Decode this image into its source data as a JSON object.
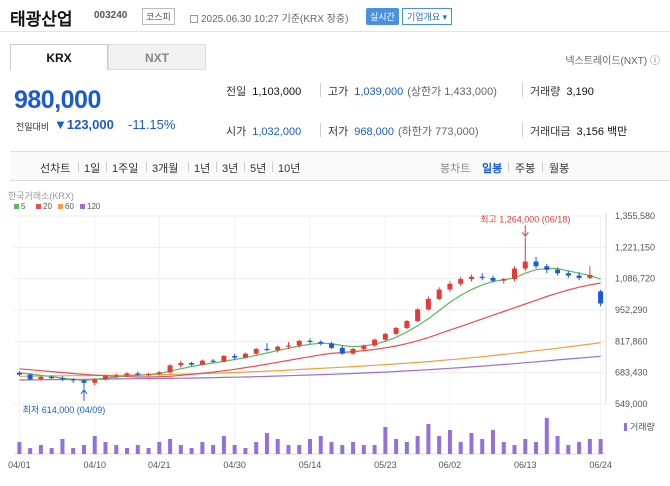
{
  "header": {
    "title": "태광산업",
    "code": "003240",
    "market": "코스피",
    "time": "2025.06.30 10:27 기준(KRX 장중)",
    "realtime": "실시간",
    "company_info": "기업개요 ▾"
  },
  "tabs": [
    "KRX",
    "NXT"
  ],
  "nxt_link": "넥스트레이드(NXT) ⓘ",
  "quote": {
    "price": "980,000",
    "change_label": "전일대비",
    "change": "▼123,000",
    "change_pct": "-11.15%"
  },
  "stats": {
    "prev_label": "전일",
    "prev": "1,103,000",
    "high_label": "고가",
    "high": "1,039,000",
    "upper_limit": "(상한가 1,433,000)",
    "volume_label": "거래량",
    "volume": "3,190",
    "open_label": "시가",
    "open": "1,032,000",
    "low_label": "저가",
    "low": "968,000",
    "lower_limit": "(하한가 773,000)",
    "amount_label": "거래대금",
    "amount": "3,156 백만"
  },
  "toolbar": {
    "line_chart": "선차트",
    "periods": [
      "1일",
      "1주일",
      "3개월",
      "1년",
      "3년",
      "5년",
      "10년"
    ],
    "candle_chart": "봉차트",
    "candle_periods": [
      "일봉",
      "주봉",
      "월봉"
    ]
  },
  "chart_data": {
    "type": "candlestick",
    "source": "한국거래소(KRX)",
    "ma_legend": [
      "5",
      "20",
      "60",
      "120"
    ],
    "y_ticks": [
      "1,355,580",
      "1,221,150",
      "1,086,720",
      "952,290",
      "817,860",
      "683,430",
      "549,000"
    ],
    "x_ticks": [
      "04/01",
      "04/10",
      "04/21",
      "04/30",
      "05/14",
      "05/23",
      "06/02",
      "06/13",
      "06/24"
    ],
    "ylim": [
      549000,
      1355580
    ],
    "high_annotation": "최고 1,264,000 (06/18)",
    "low_annotation": "최저 614,000 (04/09)",
    "volume_label": "거래량",
    "colors": {
      "up": "#e33b3b",
      "down": "#1a5ad6",
      "ma5": "#5cb85c",
      "ma20": "#e55050",
      "ma60": "#f0a040",
      "ma120": "#9b6fd1",
      "volume": "#9370db"
    },
    "candles": [
      [
        683000,
        690000,
        670000,
        675000
      ],
      [
        675000,
        680000,
        650000,
        655000
      ],
      [
        655000,
        670000,
        650000,
        665000
      ],
      [
        665000,
        672000,
        655000,
        660000
      ],
      [
        660000,
        668000,
        648000,
        655000
      ],
      [
        655000,
        660000,
        640000,
        650000
      ],
      [
        650000,
        655000,
        614000,
        640000
      ],
      [
        640000,
        660000,
        630000,
        655000
      ],
      [
        655000,
        675000,
        650000,
        668000
      ],
      [
        668000,
        680000,
        660000,
        672000
      ],
      [
        672000,
        685000,
        665000,
        680000
      ],
      [
        680000,
        688000,
        670000,
        675000
      ],
      [
        675000,
        682000,
        668000,
        678000
      ],
      [
        678000,
        690000,
        672000,
        685000
      ],
      [
        685000,
        720000,
        680000,
        715000
      ],
      [
        715000,
        735000,
        705000,
        725000
      ],
      [
        725000,
        730000,
        712000,
        718000
      ],
      [
        718000,
        740000,
        715000,
        735000
      ],
      [
        735000,
        742000,
        725000,
        730000
      ],
      [
        730000,
        760000,
        728000,
        755000
      ],
      [
        755000,
        765000,
        740000,
        748000
      ],
      [
        748000,
        770000,
        745000,
        765000
      ],
      [
        765000,
        790000,
        760000,
        785000
      ],
      [
        785000,
        810000,
        775000,
        780000
      ],
      [
        780000,
        800000,
        770000,
        795000
      ],
      [
        795000,
        815000,
        785000,
        800000
      ],
      [
        800000,
        825000,
        790000,
        820000
      ],
      [
        820000,
        830000,
        805000,
        815000
      ],
      [
        815000,
        822000,
        800000,
        808000
      ],
      [
        808000,
        815000,
        785000,
        790000
      ],
      [
        790000,
        800000,
        760000,
        765000
      ],
      [
        765000,
        790000,
        760000,
        785000
      ],
      [
        785000,
        805000,
        778000,
        800000
      ],
      [
        800000,
        830000,
        795000,
        825000
      ],
      [
        825000,
        855000,
        815000,
        850000
      ],
      [
        850000,
        880000,
        845000,
        875000
      ],
      [
        875000,
        910000,
        870000,
        905000
      ],
      [
        905000,
        960000,
        900000,
        955000
      ],
      [
        955000,
        1010000,
        950000,
        1000000
      ],
      [
        1000000,
        1050000,
        995000,
        1040000
      ],
      [
        1040000,
        1075000,
        1030000,
        1065000
      ],
      [
        1065000,
        1095000,
        1055000,
        1085000
      ],
      [
        1085000,
        1105000,
        1075000,
        1095000
      ],
      [
        1095000,
        1110000,
        1080000,
        1090000
      ],
      [
        1090000,
        1100000,
        1070000,
        1078000
      ],
      [
        1078000,
        1090000,
        1065000,
        1085000
      ],
      [
        1085000,
        1140000,
        1075000,
        1130000
      ],
      [
        1130000,
        1264000,
        1120000,
        1160000
      ],
      [
        1160000,
        1180000,
        1130000,
        1140000
      ],
      [
        1140000,
        1150000,
        1110000,
        1125000
      ],
      [
        1125000,
        1135000,
        1100000,
        1110000
      ],
      [
        1110000,
        1120000,
        1090000,
        1100000
      ],
      [
        1100000,
        1115000,
        1080000,
        1090000
      ],
      [
        1090000,
        1140000,
        1085000,
        1103000
      ],
      [
        1032000,
        1039000,
        968000,
        980000
      ]
    ],
    "ma5": [
      682000,
      678000,
      672000,
      666000,
      660000,
      655000,
      650000,
      655000,
      660000,
      665000,
      670000,
      672000,
      675000,
      680000,
      690000,
      700000,
      710000,
      718000,
      725000,
      732000,
      740000,
      748000,
      758000,
      768000,
      778000,
      788000,
      798000,
      805000,
      810000,
      808000,
      800000,
      795000,
      798000,
      805000,
      818000,
      835000,
      858000,
      885000,
      915000,
      950000,
      985000,
      1015000,
      1040000,
      1060000,
      1075000,
      1082000,
      1090000,
      1110000,
      1125000,
      1130000,
      1130000,
      1120000,
      1110000,
      1100000,
      1085000
    ],
    "ma20": [
      700000,
      696000,
      692000,
      688000,
      684000,
      680000,
      676000,
      673000,
      670000,
      668000,
      666000,
      665000,
      665000,
      666000,
      668000,
      672000,
      676000,
      681000,
      686000,
      692000,
      698000,
      705000,
      712000,
      720000,
      728000,
      736000,
      744000,
      752000,
      760000,
      766000,
      770000,
      774000,
      778000,
      783000,
      790000,
      798000,
      808000,
      820000,
      834000,
      850000,
      866000,
      882000,
      898000,
      914000,
      930000,
      946000,
      962000,
      978000,
      994000,
      1010000,
      1025000,
      1038000,
      1050000,
      1060000,
      1068000
    ],
    "ma60": [
      668000,
      668500,
      669000,
      669500,
      670000,
      670500,
      671000,
      671500,
      672000,
      672500,
      673000,
      673500,
      674000,
      675000,
      676000,
      677000,
      678000,
      679500,
      681000,
      682500,
      684000,
      686000,
      688000,
      690000,
      692000,
      694500,
      697000,
      699500,
      702000,
      704500,
      707000,
      709500,
      712000,
      715000,
      718000,
      721000,
      724000,
      727500,
      731000,
      735000,
      739000,
      743000,
      747500,
      752000,
      757000,
      762000,
      767000,
      772000,
      777500,
      783000,
      788500,
      794000,
      800000,
      806000,
      812000
    ],
    "ma120": [
      652000,
      652500,
      653000,
      653500,
      654000,
      654500,
      655000,
      655500,
      656000,
      656500,
      657000,
      657500,
      658000,
      658500,
      659000,
      659500,
      660000,
      661000,
      662000,
      663000,
      664000,
      665000,
      666000,
      667500,
      669000,
      670500,
      672000,
      673500,
      675000,
      676500,
      678000,
      680000,
      682000,
      684000,
      686000,
      688500,
      691000,
      693500,
      696000,
      699000,
      702000,
      705000,
      708000,
      711500,
      715000,
      718500,
      722000,
      726000,
      730000,
      734000,
      738000,
      742000,
      746000,
      750000,
      754000
    ],
    "volumes": [
      4,
      2,
      3,
      2,
      5,
      2,
      3,
      6,
      4,
      3,
      2,
      3,
      2,
      4,
      5,
      3,
      2,
      4,
      3,
      6,
      3,
      2,
      4,
      7,
      5,
      3,
      3,
      5,
      6,
      4,
      3,
      4,
      3,
      3,
      9,
      5,
      4,
      6,
      10,
      6,
      8,
      4,
      7,
      5,
      8,
      4,
      3,
      5,
      4,
      12,
      6,
      3,
      4,
      5,
      5
    ]
  }
}
